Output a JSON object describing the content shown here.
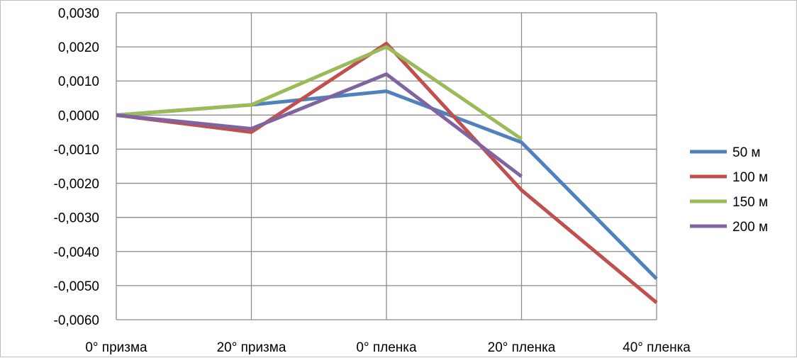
{
  "chart_data": {
    "type": "line",
    "title": "",
    "xlabel": "",
    "ylabel": "",
    "categories": [
      "0° призма",
      "20° призма",
      "0° пленка",
      "20° пленка",
      "40° пленка"
    ],
    "ylim": [
      -0.006,
      0.003
    ],
    "y_ticks": [
      0.003,
      0.002,
      0.001,
      0.0,
      -0.001,
      -0.002,
      -0.003,
      -0.004,
      -0.005,
      -0.006
    ],
    "y_tick_labels": [
      "0,0030",
      "0,0020",
      "0,0010",
      "0,0000",
      "-0,0010",
      "-0,0020",
      "-0,0030",
      "-0,0040",
      "-0,0050",
      "-0,0060"
    ],
    "grid": true,
    "legend_position": "right",
    "series": [
      {
        "name": "50 м",
        "color": "#4f81bd",
        "values": [
          0.0,
          0.0003,
          0.0007,
          -0.0008,
          -0.0048
        ]
      },
      {
        "name": "100 м",
        "color": "#c0504d",
        "values": [
          0.0,
          -0.0005,
          0.0021,
          -0.0022,
          -0.0055
        ]
      },
      {
        "name": "150 м",
        "color": "#9bbb59",
        "values": [
          0.0,
          0.0003,
          0.002,
          -0.0007,
          null
        ]
      },
      {
        "name": "200 м",
        "color": "#8064a2",
        "values": [
          0.0,
          -0.0004,
          0.0012,
          -0.0018,
          null
        ]
      }
    ]
  }
}
